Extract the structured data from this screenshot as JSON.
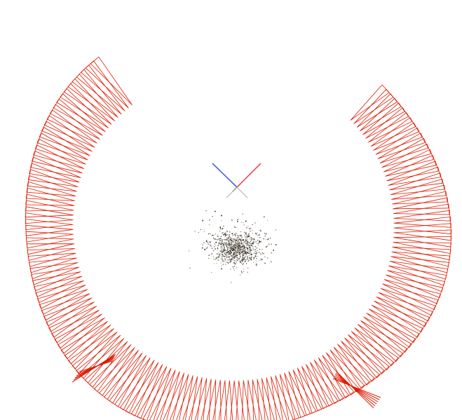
{
  "scene": {
    "background": "#ffffff",
    "camera_color": "#dd1a00",
    "axis_colors": {
      "x": "#e05252",
      "y": "#3a8a3a",
      "z": "#4a5ee8"
    },
    "point_cloud_colors": [
      "#1a1a1a",
      "#3a3530",
      "#6b6258",
      "#8a7f72",
      "#a89a8a"
    ],
    "camera_count": 160
  }
}
